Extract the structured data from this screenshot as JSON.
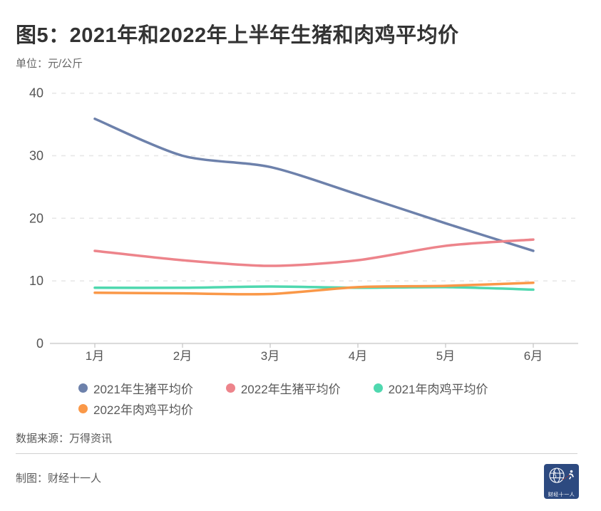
{
  "header": {
    "title": "图5：2021年和2022年上半年生猪和肉鸡平均价",
    "unit_label": "单位：元/公斤"
  },
  "chart_data": {
    "type": "line",
    "categories": [
      "1月",
      "2月",
      "3月",
      "4月",
      "5月",
      "6月"
    ],
    "series": [
      {
        "name": "2021年生猪平均价",
        "color": "#6d81ab",
        "values": [
          35.9,
          30.0,
          28.2,
          23.8,
          19.2,
          14.8
        ]
      },
      {
        "name": "2022年生猪平均价",
        "color": "#ed848b",
        "values": [
          14.8,
          13.3,
          12.4,
          13.3,
          15.6,
          16.6
        ]
      },
      {
        "name": "2021年肉鸡平均价",
        "color": "#4fd8af",
        "values": [
          8.9,
          8.9,
          9.1,
          8.9,
          9.0,
          8.6
        ]
      },
      {
        "name": "2022年肉鸡平均价",
        "color": "#fa9848",
        "values": [
          8.1,
          8.0,
          7.9,
          9.0,
          9.2,
          9.7
        ]
      }
    ],
    "title": "图5：2021年和2022年上半年生猪和肉鸡平均价",
    "xlabel": "",
    "ylabel": "单位：元/公斤",
    "ylim": [
      0,
      40
    ],
    "yticks": [
      0,
      10,
      20,
      30,
      40
    ],
    "grid": "horizontal dashed",
    "legend_position": "bottom",
    "colors": {
      "grid_line": "#e6e6e6",
      "axis_line": "#d9d9d9",
      "tick": "#c4c4c4",
      "axis_label": "#555555"
    }
  },
  "footer": {
    "source": "数据来源：万得资讯",
    "credit": "制图：财经十一人",
    "logo_text": "财经十一人"
  }
}
